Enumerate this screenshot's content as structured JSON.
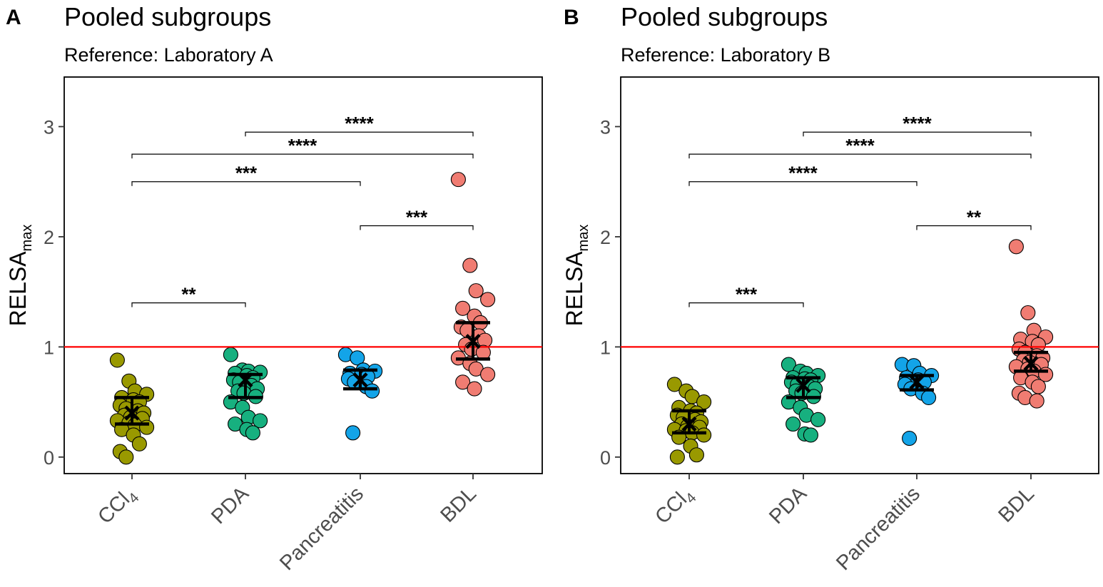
{
  "chart_data": [
    {
      "type": "scatter",
      "panel": "A",
      "title": "Pooled subgroups",
      "subtitle": "Reference: Laboratory A",
      "ylabel": "RELSA",
      "ylabel_sub": "max",
      "xlabel": "",
      "ylim": [
        -0.15,
        3.45
      ],
      "yticks": [
        0,
        1,
        2,
        3
      ],
      "reference_line": 1,
      "categories": [
        {
          "label": "CCl",
          "sub": "4"
        },
        {
          "label": "PDA",
          "sub": ""
        },
        {
          "label": "Pancreatitis",
          "sub": ""
        },
        {
          "label": "BDL",
          "sub": ""
        }
      ],
      "series": [
        {
          "name": "CCl4",
          "color": "#999900",
          "mean": 0.4,
          "ci": [
            0.3,
            0.54
          ],
          "values": [
            0.88,
            0.69,
            0.6,
            0.57,
            0.54,
            0.52,
            0.5,
            0.47,
            0.44,
            0.42,
            0.4,
            0.38,
            0.36,
            0.35,
            0.33,
            0.31,
            0.29,
            0.27,
            0.25,
            0.2,
            0.12,
            0.05,
            0.0
          ]
        },
        {
          "name": "PDA",
          "color": "#17B07F",
          "mean": 0.7,
          "ci": [
            0.54,
            0.75
          ],
          "values": [
            0.93,
            0.79,
            0.78,
            0.77,
            0.76,
            0.74,
            0.72,
            0.7,
            0.68,
            0.65,
            0.62,
            0.6,
            0.58,
            0.55,
            0.5,
            0.45,
            0.36,
            0.33,
            0.3,
            0.25,
            0.22
          ]
        },
        {
          "name": "Pancreatitis",
          "color": "#13A4E8",
          "mean": 0.7,
          "ci": [
            0.62,
            0.79
          ],
          "values": [
            0.93,
            0.9,
            0.79,
            0.78,
            0.76,
            0.75,
            0.73,
            0.71,
            0.68,
            0.64,
            0.6,
            0.22
          ]
        },
        {
          "name": "BDL",
          "color": "#F07C72",
          "mean": 1.05,
          "ci": [
            0.89,
            1.22
          ],
          "values": [
            2.52,
            1.74,
            1.51,
            1.43,
            1.35,
            1.28,
            1.22,
            1.18,
            1.15,
            1.1,
            1.06,
            1.02,
            0.98,
            0.95,
            0.9,
            0.85,
            0.8,
            0.75,
            0.68,
            0.62
          ]
        }
      ],
      "significance": [
        {
          "from": 1,
          "to": 3,
          "y": 2.95,
          "label": "****"
        },
        {
          "from": 0,
          "to": 3,
          "y": 2.75,
          "label": "****"
        },
        {
          "from": 0,
          "to": 2,
          "y": 2.5,
          "label": "***"
        },
        {
          "from": 2,
          "to": 3,
          "y": 2.1,
          "label": "***"
        },
        {
          "from": 0,
          "to": 1,
          "y": 1.4,
          "label": "**"
        }
      ]
    },
    {
      "type": "scatter",
      "panel": "B",
      "title": "Pooled subgroups",
      "subtitle": "Reference: Laboratory B",
      "ylabel": "RELSA",
      "ylabel_sub": "max",
      "xlabel": "",
      "ylim": [
        -0.15,
        3.45
      ],
      "yticks": [
        0,
        1,
        2,
        3
      ],
      "reference_line": 1,
      "categories": [
        {
          "label": "CCl",
          "sub": "4"
        },
        {
          "label": "PDA",
          "sub": ""
        },
        {
          "label": "Pancreatitis",
          "sub": ""
        },
        {
          "label": "BDL",
          "sub": ""
        }
      ],
      "series": [
        {
          "name": "CCl4",
          "color": "#999900",
          "mean": 0.3,
          "ci": [
            0.22,
            0.42
          ],
          "values": [
            0.66,
            0.6,
            0.55,
            0.5,
            0.45,
            0.42,
            0.4,
            0.38,
            0.36,
            0.34,
            0.32,
            0.3,
            0.28,
            0.27,
            0.25,
            0.24,
            0.22,
            0.2,
            0.18,
            0.1,
            0.02,
            0.0
          ]
        },
        {
          "name": "PDA",
          "color": "#17B07F",
          "mean": 0.65,
          "ci": [
            0.54,
            0.72
          ],
          "values": [
            0.84,
            0.78,
            0.76,
            0.74,
            0.72,
            0.71,
            0.7,
            0.68,
            0.66,
            0.64,
            0.62,
            0.6,
            0.58,
            0.55,
            0.5,
            0.45,
            0.38,
            0.34,
            0.3,
            0.21,
            0.2
          ]
        },
        {
          "name": "Pancreatitis",
          "color": "#13A4E8",
          "mean": 0.68,
          "ci": [
            0.61,
            0.74
          ],
          "values": [
            0.84,
            0.83,
            0.76,
            0.74,
            0.72,
            0.7,
            0.68,
            0.66,
            0.62,
            0.58,
            0.54,
            0.17
          ]
        },
        {
          "name": "BDL",
          "color": "#F07C72",
          "mean": 0.85,
          "ci": [
            0.78,
            0.95
          ],
          "values": [
            1.91,
            1.31,
            1.15,
            1.09,
            1.07,
            1.05,
            1.02,
            0.98,
            0.95,
            0.92,
            0.9,
            0.88,
            0.86,
            0.84,
            0.82,
            0.8,
            0.78,
            0.75,
            0.72,
            0.68,
            0.64,
            0.58,
            0.54,
            0.51
          ]
        }
      ],
      "significance": [
        {
          "from": 1,
          "to": 3,
          "y": 2.95,
          "label": "****"
        },
        {
          "from": 0,
          "to": 3,
          "y": 2.75,
          "label": "****"
        },
        {
          "from": 0,
          "to": 2,
          "y": 2.5,
          "label": "****"
        },
        {
          "from": 2,
          "to": 3,
          "y": 2.1,
          "label": "**"
        },
        {
          "from": 0,
          "to": 1,
          "y": 1.4,
          "label": "***"
        }
      ]
    }
  ]
}
